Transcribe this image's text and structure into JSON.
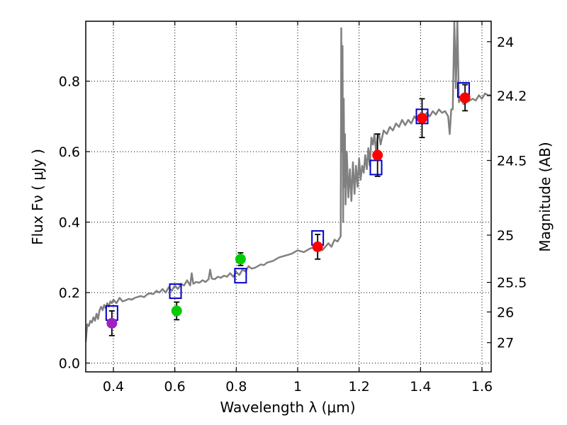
{
  "chart_data": {
    "type": "scatter",
    "xlabel": "Wavelength  λ (μm)",
    "ylabel": "Flux  Fν  ( μJy )",
    "y2label": "Magnitude (AB)",
    "xlim": [
      0.31,
      1.63
    ],
    "ylim": [
      -0.025,
      0.97
    ],
    "x_ticks": [
      {
        "value": 0.4,
        "label": "0.4"
      },
      {
        "value": 0.6,
        "label": "0.6"
      },
      {
        "value": 0.8,
        "label": "0.8"
      },
      {
        "value": 1.0,
        "label": "1"
      },
      {
        "value": 1.2,
        "label": "1.2"
      },
      {
        "value": 1.4,
        "label": "1.4"
      },
      {
        "value": 1.6,
        "label": "1.6"
      }
    ],
    "y_ticks": [
      {
        "value": 0.0,
        "label": "0.0"
      },
      {
        "value": 0.2,
        "label": "0.2"
      },
      {
        "value": 0.4,
        "label": "0.4"
      },
      {
        "value": 0.6,
        "label": "0.6"
      },
      {
        "value": 0.8,
        "label": "0.8"
      }
    ],
    "y2_ticks": [
      {
        "label": "24",
        "flux": 0.912
      },
      {
        "label": "24.2",
        "flux": 0.759
      },
      {
        "label": "24.5",
        "flux": 0.575
      },
      {
        "label": "25",
        "flux": 0.363
      },
      {
        "label": "25.5",
        "flux": 0.229
      },
      {
        "label": "26",
        "flux": 0.145
      },
      {
        "label": "27",
        "flux": 0.058
      }
    ],
    "grid": true,
    "series": [
      {
        "name": "observed-red",
        "color": "#ff0000",
        "points": [
          {
            "x": 1.065,
            "y": 0.33,
            "err": 0.035
          },
          {
            "x": 1.26,
            "y": 0.59,
            "err": 0.06
          },
          {
            "x": 1.405,
            "y": 0.695,
            "err": 0.055
          },
          {
            "x": 1.545,
            "y": 0.753,
            "err": 0.037
          }
        ]
      },
      {
        "name": "observed-green",
        "color": "#00cc00",
        "points": [
          {
            "x": 0.606,
            "y": 0.148,
            "err": 0.025
          },
          {
            "x": 0.814,
            "y": 0.295,
            "err": 0.018
          }
        ]
      },
      {
        "name": "observed-magenta",
        "color": "#a020c0",
        "points": [
          {
            "x": 0.395,
            "y": 0.113,
            "err": 0.035
          }
        ]
      },
      {
        "name": "model-bandpass",
        "color": "#0000cc",
        "points": [
          {
            "x": 0.395,
            "y": 0.142
          },
          {
            "x": 0.602,
            "y": 0.204
          },
          {
            "x": 0.814,
            "y": 0.248
          },
          {
            "x": 1.065,
            "y": 0.355
          },
          {
            "x": 1.255,
            "y": 0.555
          },
          {
            "x": 1.405,
            "y": 0.7
          },
          {
            "x": 1.54,
            "y": 0.775
          }
        ]
      }
    ],
    "model_spectrum": {
      "color": "#808080",
      "x": [
        0.31,
        0.315,
        0.32,
        0.325,
        0.33,
        0.335,
        0.34,
        0.345,
        0.35,
        0.355,
        0.36,
        0.365,
        0.37,
        0.375,
        0.38,
        0.385,
        0.39,
        0.395,
        0.4,
        0.41,
        0.42,
        0.43,
        0.44,
        0.45,
        0.46,
        0.47,
        0.48,
        0.49,
        0.5,
        0.51,
        0.52,
        0.53,
        0.54,
        0.55,
        0.56,
        0.57,
        0.58,
        0.59,
        0.6,
        0.61,
        0.62,
        0.63,
        0.64,
        0.65,
        0.655,
        0.66,
        0.67,
        0.68,
        0.69,
        0.7,
        0.71,
        0.715,
        0.72,
        0.73,
        0.74,
        0.75,
        0.76,
        0.77,
        0.78,
        0.79,
        0.8,
        0.81,
        0.82,
        0.83,
        0.84,
        0.85,
        0.86,
        0.87,
        0.88,
        0.89,
        0.9,
        0.92,
        0.94,
        0.96,
        0.98,
        1.0,
        1.02,
        1.04,
        1.06,
        1.08,
        1.1,
        1.11,
        1.12,
        1.13,
        1.14,
        1.142,
        1.144,
        1.146,
        1.148,
        1.15,
        1.152,
        1.154,
        1.156,
        1.16,
        1.165,
        1.17,
        1.175,
        1.18,
        1.185,
        1.19,
        1.195,
        1.2,
        1.205,
        1.21,
        1.215,
        1.22,
        1.225,
        1.23,
        1.235,
        1.24,
        1.245,
        1.25,
        1.255,
        1.26,
        1.265,
        1.27,
        1.28,
        1.29,
        1.3,
        1.31,
        1.32,
        1.33,
        1.34,
        1.35,
        1.36,
        1.37,
        1.38,
        1.39,
        1.4,
        1.41,
        1.42,
        1.43,
        1.44,
        1.45,
        1.46,
        1.47,
        1.48,
        1.49,
        1.495,
        1.5,
        1.505,
        1.51,
        1.515,
        1.52,
        1.525,
        1.53,
        1.54,
        1.55,
        1.56,
        1.57,
        1.58,
        1.59,
        1.6,
        1.61,
        1.62,
        1.63
      ],
      "y": [
        0.06,
        0.11,
        0.105,
        0.12,
        0.115,
        0.13,
        0.12,
        0.14,
        0.125,
        0.15,
        0.16,
        0.15,
        0.165,
        0.155,
        0.17,
        0.16,
        0.175,
        0.17,
        0.18,
        0.17,
        0.185,
        0.175,
        0.178,
        0.182,
        0.18,
        0.185,
        0.188,
        0.19,
        0.187,
        0.195,
        0.198,
        0.196,
        0.205,
        0.2,
        0.21,
        0.2,
        0.215,
        0.205,
        0.22,
        0.21,
        0.225,
        0.22,
        0.235,
        0.22,
        0.255,
        0.225,
        0.23,
        0.228,
        0.235,
        0.23,
        0.238,
        0.265,
        0.24,
        0.238,
        0.245,
        0.242,
        0.248,
        0.245,
        0.255,
        0.245,
        0.258,
        0.25,
        0.265,
        0.26,
        0.275,
        0.268,
        0.27,
        0.275,
        0.28,
        0.278,
        0.285,
        0.29,
        0.3,
        0.305,
        0.31,
        0.32,
        0.315,
        0.325,
        0.33,
        0.32,
        0.34,
        0.33,
        0.35,
        0.345,
        0.36,
        0.95,
        0.6,
        0.9,
        0.4,
        0.75,
        0.5,
        0.65,
        0.45,
        0.6,
        0.47,
        0.55,
        0.46,
        0.57,
        0.48,
        0.56,
        0.5,
        0.58,
        0.52,
        0.56,
        0.54,
        0.59,
        0.55,
        0.61,
        0.56,
        0.64,
        0.62,
        0.65,
        0.6,
        0.64,
        0.65,
        0.62,
        0.66,
        0.65,
        0.67,
        0.66,
        0.68,
        0.67,
        0.69,
        0.675,
        0.69,
        0.68,
        0.7,
        0.69,
        0.705,
        0.69,
        0.71,
        0.7,
        0.715,
        0.705,
        0.72,
        0.71,
        0.715,
        0.7,
        0.65,
        0.72,
        0.72,
        0.97,
        0.78,
        0.97,
        0.74,
        0.75,
        0.735,
        0.74,
        0.745,
        0.75,
        0.745,
        0.76,
        0.75,
        0.765,
        0.76,
        0.76
      ]
    }
  }
}
